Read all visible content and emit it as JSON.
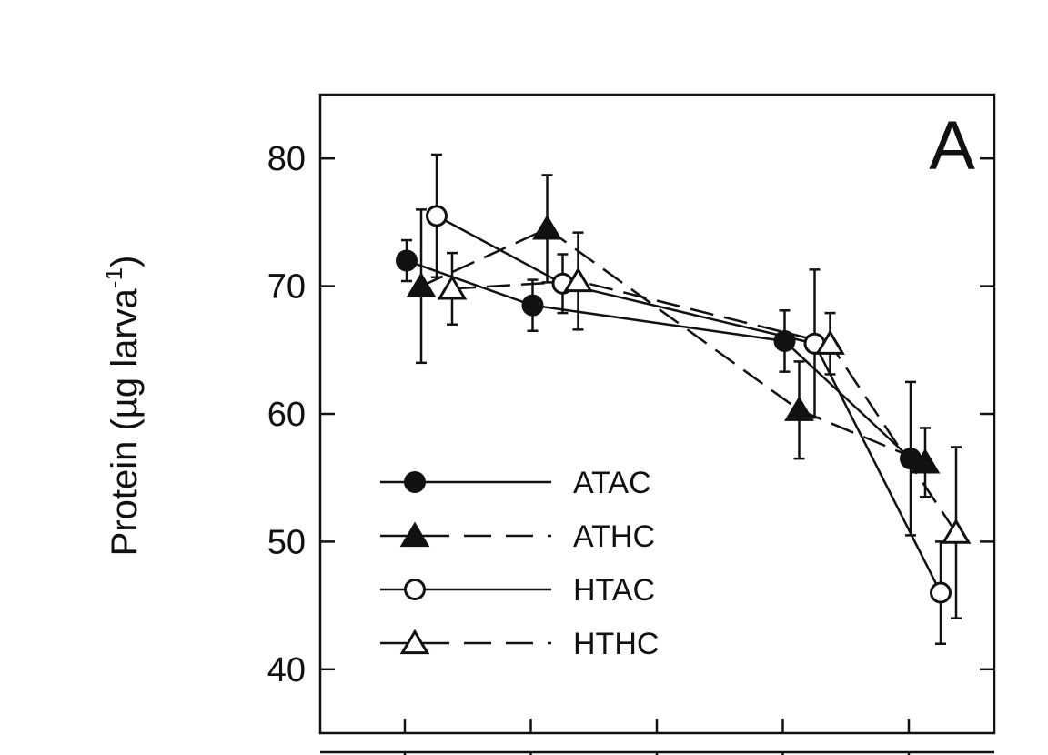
{
  "chart_data": {
    "type": "line",
    "panel_label": "A",
    "ylabel": "Protein (µg larva",
    "ylabel_superscript": "-1",
    "ylabel_close": ")",
    "xlabel": "",
    "ylim": [
      35,
      85
    ],
    "yticks": [
      40,
      50,
      60,
      70,
      80
    ],
    "x_groups": 5,
    "grid": false,
    "legend_placement": "lower-left",
    "series": [
      {
        "name": "ATAC",
        "marker": "circle",
        "fill": "filled",
        "dash": "solid",
        "points": [
          {
            "x": 1,
            "y": 72.0,
            "err": 1.6
          },
          {
            "x": 2,
            "y": 68.5,
            "err": 2.0
          },
          {
            "x": 4,
            "y": 65.7,
            "err": 2.4
          },
          {
            "x": 5,
            "y": 56.5,
            "err": 6.0
          }
        ]
      },
      {
        "name": "ATHC",
        "marker": "triangle",
        "fill": "filled",
        "dash": "dashed",
        "points": [
          {
            "x": 1,
            "y": 70.0,
            "err": 6.0
          },
          {
            "x": 2,
            "y": 74.5,
            "err": 4.2
          },
          {
            "x": 4,
            "y": 60.3,
            "err": 3.8
          },
          {
            "x": 5,
            "y": 56.2,
            "err": 2.7
          }
        ]
      },
      {
        "name": "HTAC",
        "marker": "circle",
        "fill": "open",
        "dash": "solid",
        "points": [
          {
            "x": 1,
            "y": 75.5,
            "err": 4.8
          },
          {
            "x": 2,
            "y": 70.2,
            "err": 2.3
          },
          {
            "x": 4,
            "y": 65.5,
            "err": 5.8
          },
          {
            "x": 5,
            "y": 46.0,
            "err": 4.0
          }
        ]
      },
      {
        "name": "HTHC",
        "marker": "triangle",
        "fill": "open",
        "dash": "dashed",
        "points": [
          {
            "x": 1,
            "y": 69.8,
            "err": 2.8
          },
          {
            "x": 2,
            "y": 70.4,
            "err": 3.8
          },
          {
            "x": 4,
            "y": 65.5,
            "err": 2.4
          },
          {
            "x": 5,
            "y": 50.7,
            "err": 6.7
          }
        ]
      }
    ]
  }
}
